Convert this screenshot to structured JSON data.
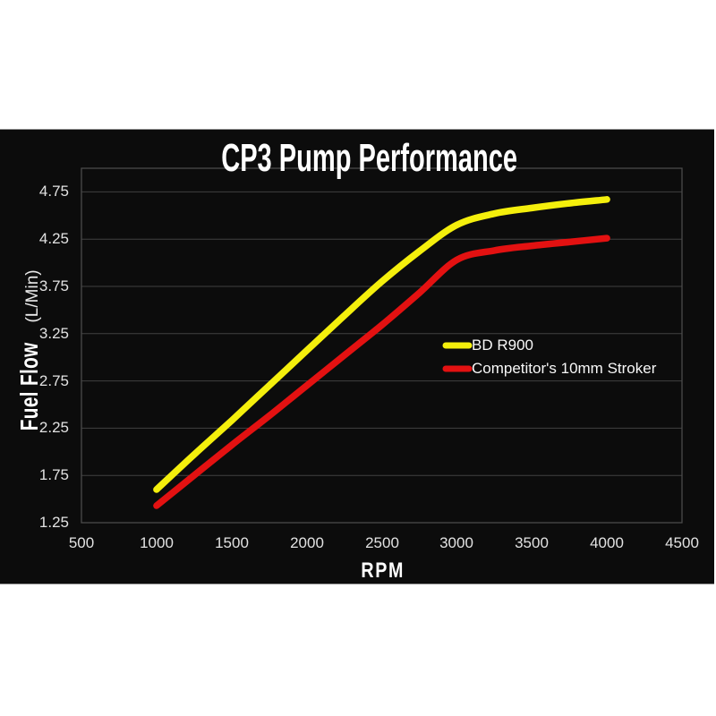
{
  "title": "CP3 Pump Performance",
  "colors": {
    "page_background": "#ffffff",
    "chart_background": "#0c0c0c",
    "gridline": "#414141",
    "plot_border": "#4b4b4b",
    "text": "#ffffff",
    "tick_text": "#e2e2e2",
    "series_yellow": "#f4ef0c",
    "series_red": "#e31111"
  },
  "axis": {
    "ylabel_main": "Fuel Flow",
    "ylabel_unit": "(L/Min)",
    "xlabel": "RPM"
  },
  "chart_data": {
    "type": "line",
    "title": "CP3 Pump Performance",
    "xlabel": "RPM",
    "ylabel": "Fuel Flow (L/Min)",
    "xlim": [
      500,
      4500
    ],
    "ylim": [
      1.25,
      5.0
    ],
    "x_ticks": [
      500,
      1000,
      1500,
      2000,
      2500,
      3000,
      3500,
      4000,
      4500
    ],
    "y_ticks": [
      1.25,
      1.75,
      2.25,
      2.75,
      3.25,
      3.75,
      4.25,
      4.75
    ],
    "grid": "horizontal",
    "legend_position": "center-right",
    "x": [
      1000,
      1250,
      1500,
      1750,
      2000,
      2250,
      2500,
      2750,
      3000,
      3250,
      3500,
      3750,
      4000
    ],
    "series": [
      {
        "name": "BD R900",
        "color": "#f4ef0c",
        "values": [
          1.6,
          1.97,
          2.33,
          2.7,
          3.07,
          3.44,
          3.8,
          4.12,
          4.4,
          4.52,
          4.58,
          4.63,
          4.67
        ]
      },
      {
        "name": "Competitor's 10mm Stroker",
        "color": "#e31111",
        "values": [
          1.43,
          1.75,
          2.07,
          2.38,
          2.7,
          3.02,
          3.34,
          3.68,
          4.03,
          4.13,
          4.18,
          4.22,
          4.26
        ]
      }
    ]
  }
}
